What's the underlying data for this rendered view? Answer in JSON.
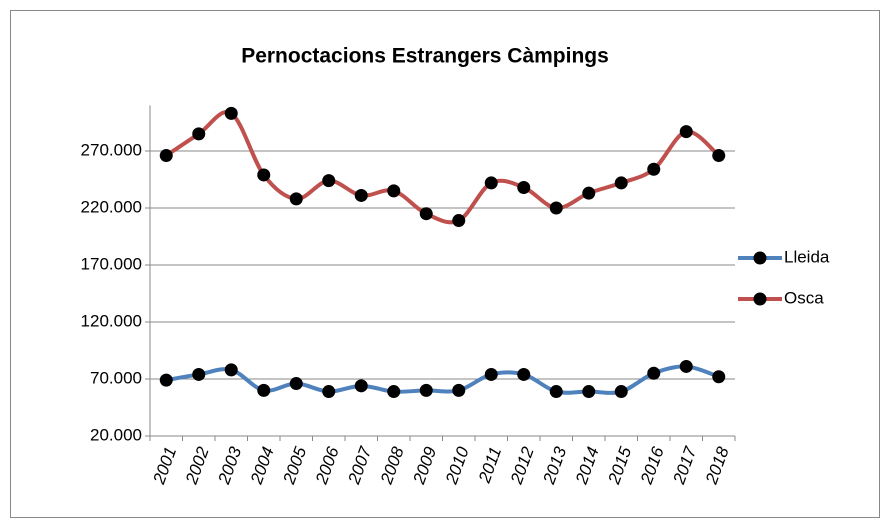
{
  "chart_data": {
    "type": "line",
    "title": "Pernoctacions Estrangers  Càmpings",
    "categories": [
      "2001",
      "2002",
      "2003",
      "2004",
      "2005",
      "2006",
      "2007",
      "2008",
      "2009",
      "2010",
      "2011",
      "2012",
      "2013",
      "2014",
      "2015",
      "2016",
      "2017",
      "2018"
    ],
    "series": [
      {
        "name": "Lleida",
        "color": "#4f81bd",
        "values": [
          69000,
          74000,
          78000,
          60000,
          66000,
          59000,
          64000,
          59000,
          60000,
          60000,
          74000,
          74000,
          59000,
          59000,
          59000,
          75000,
          81000,
          72000
        ]
      },
      {
        "name": "Osca",
        "color": "#c0504d",
        "values": [
          266000,
          285000,
          303000,
          249000,
          228000,
          244000,
          231000,
          235000,
          215000,
          209000,
          242000,
          238000,
          220000,
          233000,
          242000,
          254000,
          287000,
          266000
        ]
      }
    ],
    "ylim": [
      20000,
      310000
    ],
    "yticks": [
      {
        "value": 20000,
        "label": "20.000"
      },
      {
        "value": 70000,
        "label": "70.000"
      },
      {
        "value": 120000,
        "label": "120.000"
      },
      {
        "value": 170000,
        "label": "170.000"
      },
      {
        "value": 220000,
        "label": "220.000"
      },
      {
        "value": 270000,
        "label": "270.000"
      }
    ],
    "grid": true,
    "legend": "right",
    "smooth": true
  }
}
